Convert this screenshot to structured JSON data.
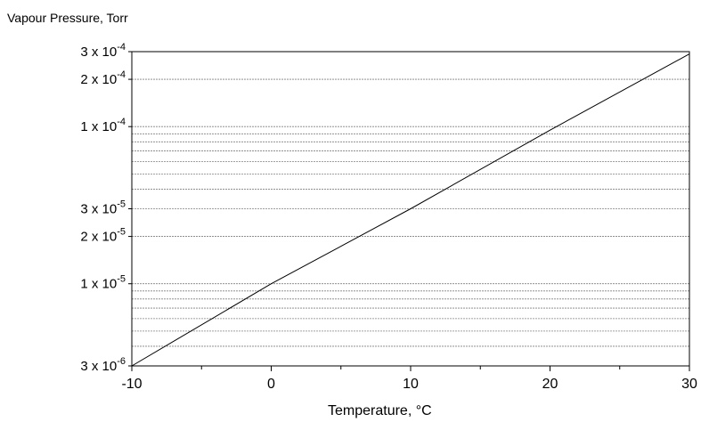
{
  "chart_data": {
    "type": "line",
    "ylabel": "Vapour Pressure, Torr",
    "xlabel": "Temperature, °C",
    "x_scale": "linear",
    "y_scale": "log",
    "xlim": [
      -10,
      30
    ],
    "ylim": [
      3e-06,
      0.0003
    ],
    "x_ticks": [
      {
        "value": -10,
        "label": "-10"
      },
      {
        "value": 0,
        "label": "0"
      },
      {
        "value": 10,
        "label": "10"
      },
      {
        "value": 20,
        "label": "20"
      },
      {
        "value": 30,
        "label": "30"
      }
    ],
    "y_ticks": [
      {
        "value": 3e-06,
        "base": "3 x 10",
        "exp": "-6"
      },
      {
        "value": 1e-05,
        "base": "1 x 10",
        "exp": "-5"
      },
      {
        "value": 2e-05,
        "base": "2 x 10",
        "exp": "-5"
      },
      {
        "value": 3e-05,
        "base": "3 x 10",
        "exp": "-5"
      },
      {
        "value": 0.0001,
        "base": "1 x 10",
        "exp": "-4"
      },
      {
        "value": 0.0002,
        "base": "2 x 10",
        "exp": "-4"
      },
      {
        "value": 0.0003,
        "base": "3 x 10",
        "exp": "-4"
      }
    ],
    "grid_y_values": [
      4e-06,
      5e-06,
      6e-06,
      7e-06,
      8e-06,
      9e-06,
      1e-05,
      2e-05,
      3e-05,
      4e-05,
      5e-05,
      6e-05,
      7e-05,
      8e-05,
      9e-05,
      0.0001,
      0.0002
    ],
    "grid": true,
    "series": [
      {
        "x": [
          -10,
          0,
          10,
          20,
          30
        ],
        "y": [
          3e-06,
          1e-05,
          3e-05,
          9.5e-05,
          0.00029
        ]
      }
    ],
    "colors": {
      "line": "#000000",
      "grid": "#808080",
      "axis": "#000000"
    }
  }
}
